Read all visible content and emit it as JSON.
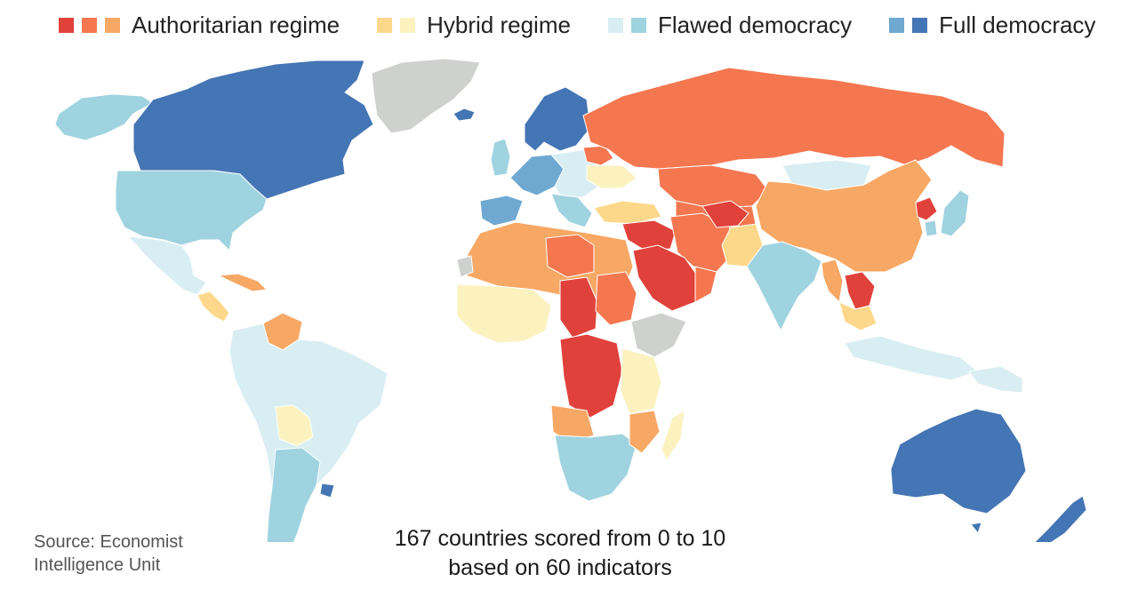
{
  "colors": {
    "authoritarian_1": "#e0413a",
    "authoritarian_2": "#f47750",
    "authoritarian_3": "#f7a864",
    "hybrid_1": "#fdd88a",
    "hybrid_2": "#fbf2c0",
    "flawed_1": "#d8eef3",
    "flawed_2": "#9fd3e0",
    "full_1": "#6fa8d0",
    "full_2": "#4475b4",
    "no_data": "#cfd1cf"
  },
  "legend": {
    "authoritarian": "Authoritarian regime",
    "hybrid": "Hybrid regime",
    "flawed": "Flawed democracy",
    "full": "Full democracy"
  },
  "source": {
    "line1": "Source: Economist",
    "line2": "Intelligence Unit"
  },
  "subtitle": {
    "line1": "167 countries scored from 0 to 10",
    "line2": "based on 60 indicators"
  }
}
